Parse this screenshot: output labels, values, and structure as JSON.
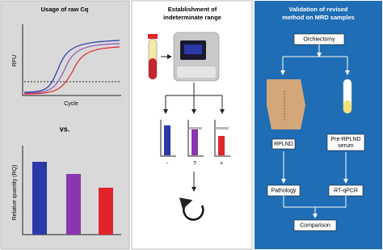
{
  "panels": [
    {
      "title": "Usage of raw Cq",
      "y_label": "RFU",
      "x_label": "Cycle",
      "separator": "vs.",
      "bar_y_label": "Relative quantity (RQ)"
    },
    {
      "title": [
        "Establishment of",
        "indeterminate range"
      ],
      "result_labels": [
        "-",
        "?",
        "+"
      ]
    },
    {
      "title": [
        "Validation of revised",
        "method on MRD samples"
      ],
      "steps": {
        "surgery": "Orchiectomy",
        "tissue": "RPLND",
        "serum": [
          "Pre-RPLND",
          "serum"
        ],
        "pathology": "Pathology",
        "assay": "RT-qPCR",
        "result": "Comparison"
      }
    }
  ]
}
